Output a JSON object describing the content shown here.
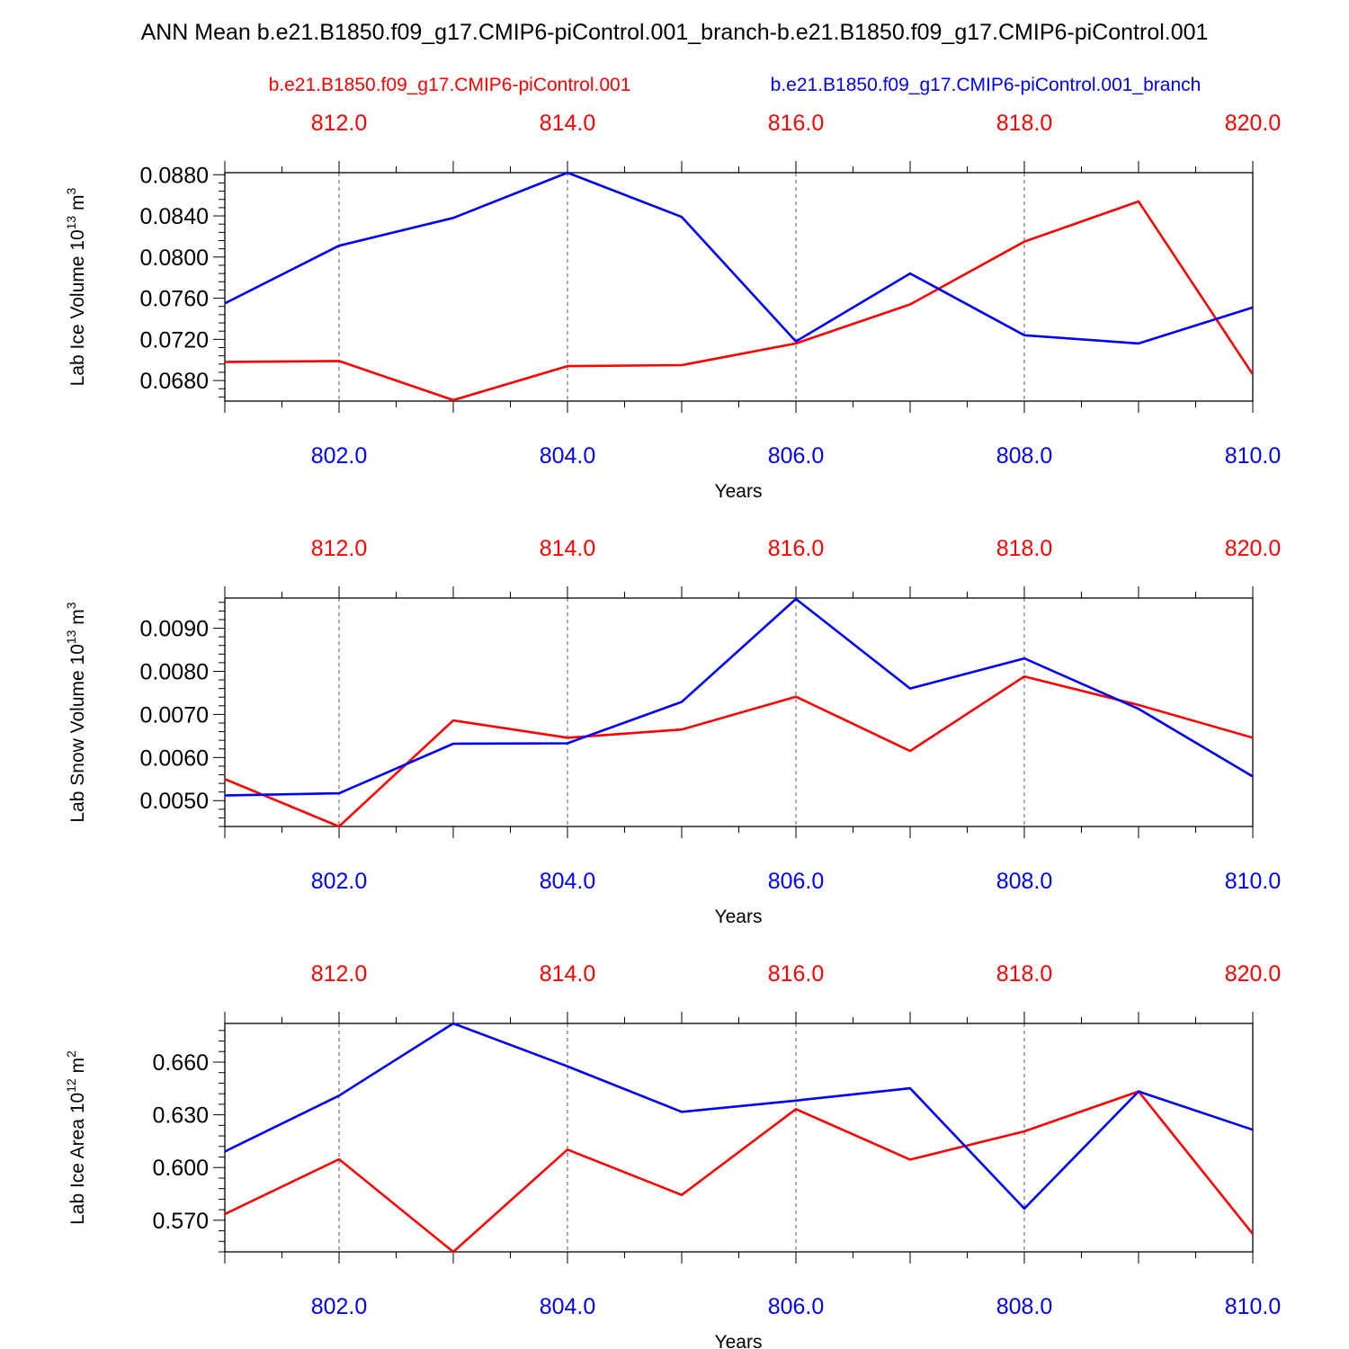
{
  "title": "ANN Mean b.e21.B1850.f09_g17.CMIP6-piControl.001_branch-b.e21.B1850.f09_g17.CMIP6-piControl.001",
  "legend": {
    "control": "b.e21.B1850.f09_g17.CMIP6-piControl.001",
    "branch": "b.e21.B1850.f09_g17.CMIP6-piControl.001_branch"
  },
  "colors": {
    "control": "#ff0000",
    "branch": "#0000ff"
  },
  "chart_data": [
    {
      "type": "line",
      "ylabel": "Lab Ice Volume 10",
      "ylabel_exp": "13",
      "ylabel_unit": " m",
      "ylabel_unit_exp": "3",
      "xlabel": "Years",
      "xlim_bottom": [
        801,
        810
      ],
      "xlim_top": [
        811,
        820
      ],
      "ylim": [
        0.066,
        0.0882
      ],
      "yticks": [
        0.068,
        0.072,
        0.076,
        0.08,
        0.084,
        0.088
      ],
      "ytick_labels": [
        "0.0680",
        "0.0720",
        "0.0760",
        "0.0800",
        "0.0840",
        "0.0880"
      ],
      "xticks_bottom": [
        "802.0",
        "804.0",
        "806.0",
        "808.0",
        "810.0"
      ],
      "xticks_top": [
        "812.0",
        "814.0",
        "816.0",
        "818.0",
        "820.0"
      ],
      "series": [
        {
          "name": "b.e21.B1850.f09_g17.CMIP6-piControl.001",
          "x": [
            811,
            812,
            813,
            814,
            815,
            816,
            817,
            818,
            819,
            820
          ],
          "values": [
            0.0698,
            0.0699,
            0.0661,
            0.0694,
            0.0695,
            0.0716,
            0.0754,
            0.0815,
            0.0854,
            0.0686
          ]
        },
        {
          "name": "b.e21.B1850.f09_g17.CMIP6-piControl.001_branch",
          "x": [
            801,
            802,
            803,
            804,
            805,
            806,
            807,
            808,
            809,
            810
          ],
          "values": [
            0.0755,
            0.0811,
            0.0838,
            0.0882,
            0.0839,
            0.0718,
            0.0784,
            0.0724,
            0.0716,
            0.0751
          ]
        }
      ]
    },
    {
      "type": "line",
      "ylabel": "Lab Snow Volume 10",
      "ylabel_exp": "13",
      "ylabel_unit": " m",
      "ylabel_unit_exp": "3",
      "xlabel": "Years",
      "xlim_bottom": [
        801,
        810
      ],
      "xlim_top": [
        811,
        820
      ],
      "ylim": [
        0.0044,
        0.0097
      ],
      "yticks": [
        0.005,
        0.006,
        0.007,
        0.008,
        0.009
      ],
      "ytick_labels": [
        "0.0050",
        "0.0060",
        "0.0070",
        "0.0080",
        "0.0090"
      ],
      "xticks_bottom": [
        "802.0",
        "804.0",
        "806.0",
        "808.0",
        "810.0"
      ],
      "xticks_top": [
        "812.0",
        "814.0",
        "816.0",
        "818.0",
        "820.0"
      ],
      "series": [
        {
          "name": "b.e21.B1850.f09_g17.CMIP6-piControl.001",
          "x": [
            811,
            812,
            813,
            814,
            815,
            816,
            817,
            818,
            819,
            820
          ],
          "values": [
            0.0055,
            0.0044,
            0.00686,
            0.00646,
            0.00665,
            0.00741,
            0.00615,
            0.00788,
            0.00722,
            0.00646
          ]
        },
        {
          "name": "b.e21.B1850.f09_g17.CMIP6-piControl.001_branch",
          "x": [
            801,
            802,
            803,
            804,
            805,
            806,
            807,
            808,
            809,
            810
          ],
          "values": [
            0.00512,
            0.00517,
            0.00632,
            0.00633,
            0.00729,
            0.00968,
            0.0076,
            0.0083,
            0.00713,
            0.00556
          ]
        }
      ]
    },
    {
      "type": "line",
      "ylabel": "Lab Ice Area 10",
      "ylabel_exp": "12",
      "ylabel_unit": " m",
      "ylabel_unit_exp": "2",
      "xlabel": "Years",
      "xlim_bottom": [
        801,
        810
      ],
      "xlim_top": [
        811,
        820
      ],
      "ylim": [
        0.552,
        0.682
      ],
      "yticks": [
        0.57,
        0.6,
        0.63,
        0.66
      ],
      "ytick_labels": [
        "0.570",
        "0.600",
        "0.630",
        "0.660"
      ],
      "xticks_bottom": [
        "802.0",
        "804.0",
        "806.0",
        "808.0",
        "810.0"
      ],
      "xticks_top": [
        "812.0",
        "814.0",
        "816.0",
        "818.0",
        "820.0"
      ],
      "series": [
        {
          "name": "b.e21.B1850.f09_g17.CMIP6-piControl.001",
          "x": [
            811,
            812,
            813,
            814,
            815,
            816,
            817,
            818,
            819,
            820
          ],
          "values": [
            0.5735,
            0.6047,
            0.552,
            0.6102,
            0.5844,
            0.6332,
            0.6045,
            0.6206,
            0.6433,
            0.5622
          ]
        },
        {
          "name": "b.e21.B1850.f09_g17.CMIP6-piControl.001_branch",
          "x": [
            801,
            802,
            803,
            804,
            805,
            806,
            807,
            808,
            809,
            810
          ],
          "values": [
            0.6091,
            0.6409,
            0.682,
            0.6576,
            0.6317,
            0.6381,
            0.6451,
            0.5766,
            0.6433,
            0.6215
          ]
        }
      ]
    }
  ]
}
